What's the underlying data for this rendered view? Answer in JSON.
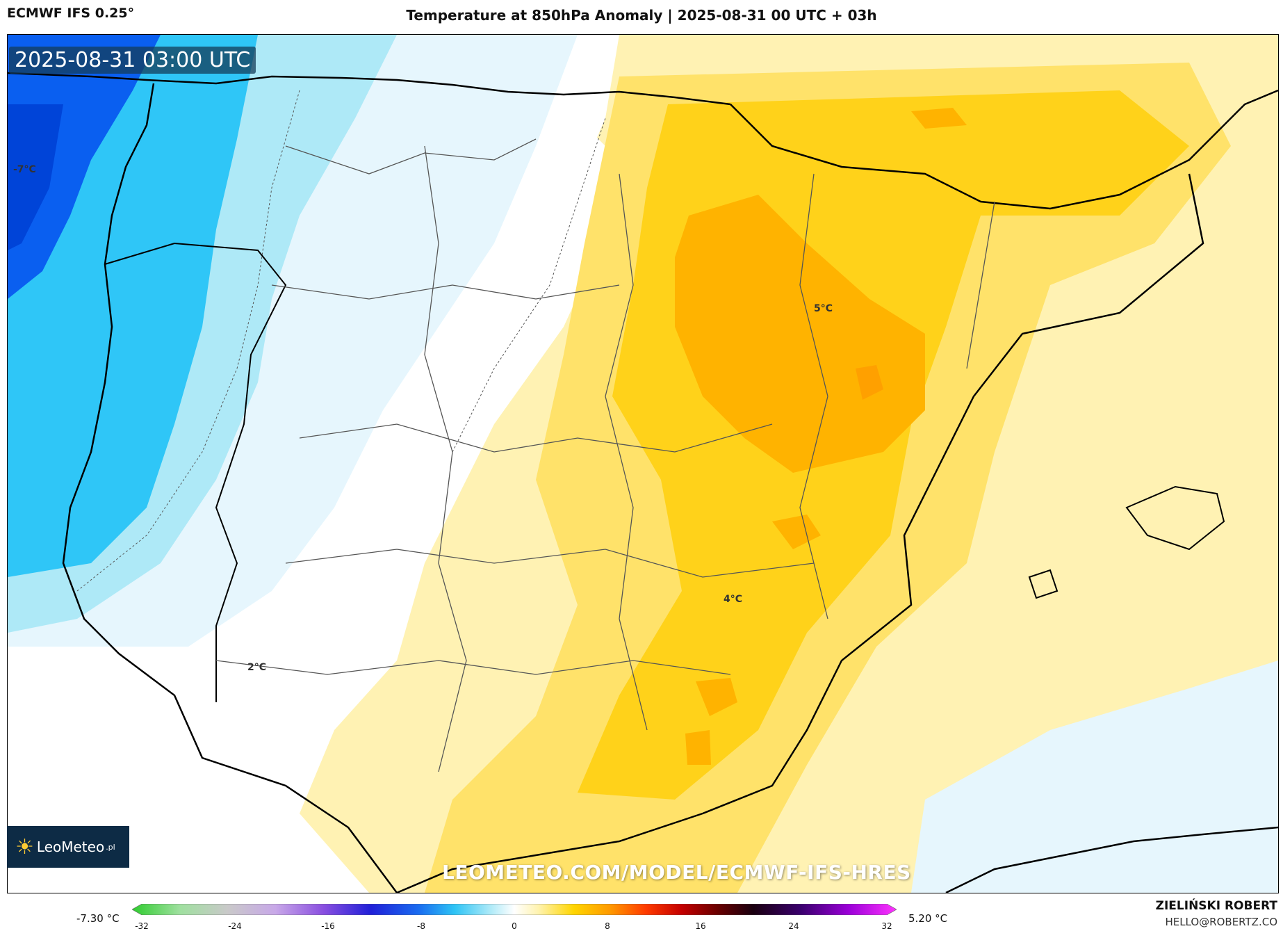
{
  "header": {
    "model": "ECMWF IFS 0.25°",
    "title": "Temperature at 850hPa Anomaly | 2025-08-31 00 UTC + 03h"
  },
  "map": {
    "valid_time": "2025-08-31 03:00 UTC",
    "labels": [
      {
        "text": "-7°C",
        "value": -7
      },
      {
        "text": "5°C",
        "value": 5
      },
      {
        "text": "4°C",
        "value": 4
      },
      {
        "text": "2°C",
        "value": 2
      }
    ]
  },
  "branding": {
    "logo_text": "LeoMeteo",
    "logo_suffix": ".pl",
    "watermark": "LEOMETEO.COM/MODEL/ECMWF-IFS-HRES",
    "author": "ZIELIŃSKI ROBERT",
    "email": "HELLO@ROBERTZ.CO"
  },
  "colorbar": {
    "min_label": "-7.30 °C",
    "max_label": "5.20 °C",
    "ticks": [
      "-32",
      "-24",
      "-16",
      "-8",
      "0",
      "8",
      "16",
      "24",
      "32"
    ],
    "range": [
      -32,
      32
    ],
    "stops": [
      {
        "v": -32,
        "c": "#2ecc2e"
      },
      {
        "v": -28,
        "c": "#9fe09f"
      },
      {
        "v": -24,
        "c": "#c9c9c9"
      },
      {
        "v": -20,
        "c": "#c8a8e8"
      },
      {
        "v": -16,
        "c": "#8a4fe0"
      },
      {
        "v": -12,
        "c": "#2020d8"
      },
      {
        "v": -8,
        "c": "#1a6cf0"
      },
      {
        "v": -5,
        "c": "#2ec4f5"
      },
      {
        "v": -2,
        "c": "#aeeaf8"
      },
      {
        "v": 0,
        "c": "#ffffff"
      },
      {
        "v": 2,
        "c": "#fff3b0"
      },
      {
        "v": 5,
        "c": "#ffd500"
      },
      {
        "v": 8,
        "c": "#ff9a00"
      },
      {
        "v": 11,
        "c": "#ff3b00"
      },
      {
        "v": 14,
        "c": "#c40000"
      },
      {
        "v": 17,
        "c": "#6a0000"
      },
      {
        "v": 20,
        "c": "#1a0010"
      },
      {
        "v": 24,
        "c": "#3a006e"
      },
      {
        "v": 28,
        "c": "#9b00d8"
      },
      {
        "v": 32,
        "c": "#ff33ff"
      }
    ]
  },
  "colors": {
    "cold_deep": "#0a5ff0",
    "cold_mid": "#2fc6f7",
    "cold_light": "#aee9f7",
    "cold_pale": "#e6f6fd",
    "warm_pale": "#fff2b3",
    "warm_light": "#ffe26a",
    "warm_mid": "#ffd21a",
    "warm_strong": "#ffb300",
    "warm_peak": "#ffa000"
  }
}
